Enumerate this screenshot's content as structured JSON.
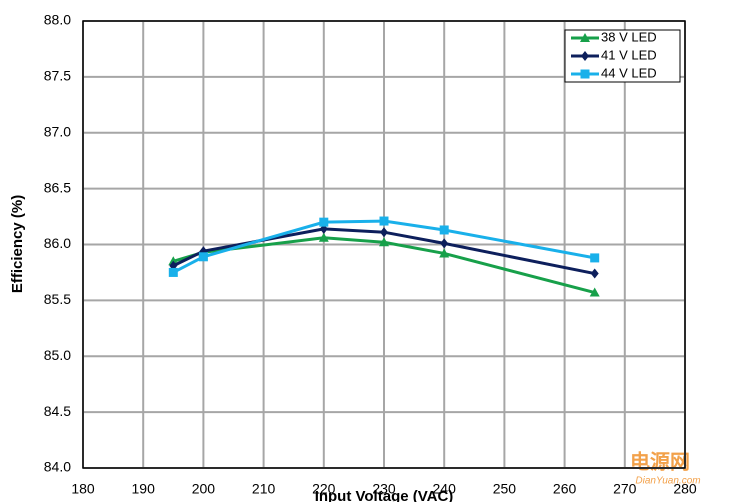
{
  "chart_data": {
    "type": "line",
    "xlabel": "Input Voltage (VAC)",
    "ylabel": "Efficiency (%)",
    "x": [
      195,
      200,
      220,
      230,
      240,
      265
    ],
    "series": [
      {
        "name": "38 V LED",
        "color": "#17a04a",
        "marker": "triangle",
        "values": [
          85.85,
          85.93,
          86.06,
          86.02,
          85.92,
          85.57
        ]
      },
      {
        "name": "41 V LED",
        "color": "#0d1f5c",
        "marker": "diamond",
        "values": [
          85.81,
          85.94,
          86.14,
          86.11,
          86.01,
          85.74
        ]
      },
      {
        "name": "44 V LED",
        "color": "#19b0ea",
        "marker": "square",
        "values": [
          85.75,
          85.89,
          86.2,
          86.21,
          86.13,
          85.88
        ]
      }
    ],
    "xlim": [
      180,
      280
    ],
    "xticks": [
      180,
      190,
      200,
      210,
      220,
      230,
      240,
      250,
      260,
      270,
      280
    ],
    "ylim": [
      84,
      88
    ],
    "yticks": [
      {
        "value": 84,
        "label": "84.0"
      },
      {
        "value": 84.5,
        "label": "84.5"
      },
      {
        "value": 85,
        "label": "85.0"
      },
      {
        "value": 85.5,
        "label": "85.5"
      },
      {
        "value": 86,
        "label": "86.0"
      },
      {
        "value": 86.5,
        "label": "86.5"
      },
      {
        "value": 87,
        "label": "87.0"
      },
      {
        "value": 87.5,
        "label": "87.5"
      },
      {
        "value": 88,
        "label": "88.0"
      }
    ],
    "grid": true,
    "legend": "upper right",
    "watermark": "电源网",
    "watermark_sub": "DianYuan.com"
  }
}
